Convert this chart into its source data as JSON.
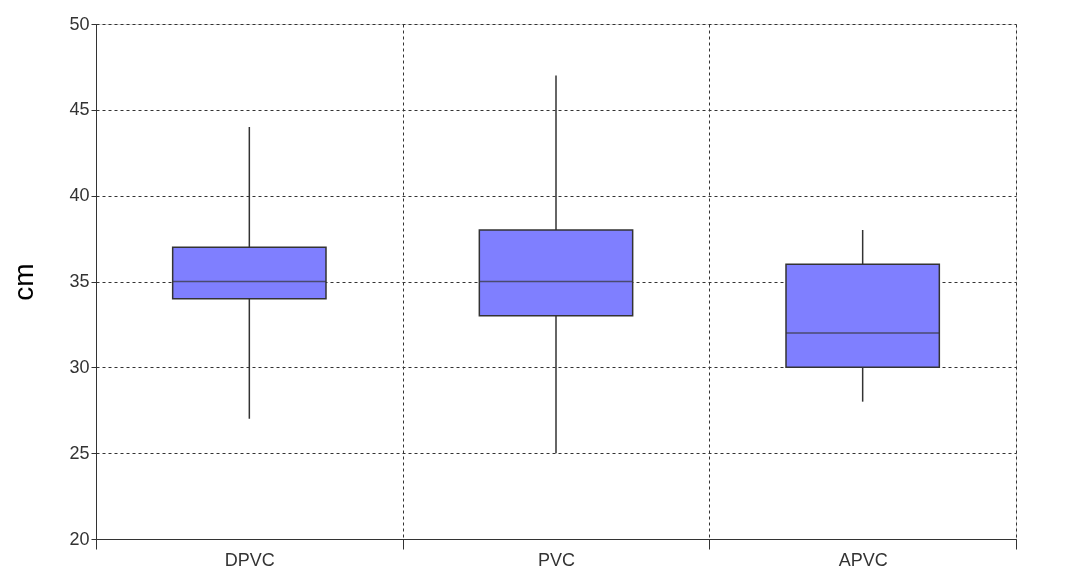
{
  "chart_data": {
    "type": "box",
    "categories": [
      "DPVC",
      "PVC",
      "APVC"
    ],
    "boxes": [
      {
        "low": 27,
        "q1": 34,
        "median": 35,
        "q3": 37,
        "high": 44
      },
      {
        "low": 25,
        "q1": 33,
        "median": 35,
        "q3": 38,
        "high": 47
      },
      {
        "low": 28,
        "q1": 30,
        "median": 32,
        "q3": 36,
        "high": 38
      }
    ],
    "color": "#7f7fff",
    "ylabel": "cm",
    "ylim": [
      20,
      50
    ],
    "yticks": [
      20,
      25,
      30,
      35,
      40,
      45,
      50
    ],
    "grid": true
  }
}
